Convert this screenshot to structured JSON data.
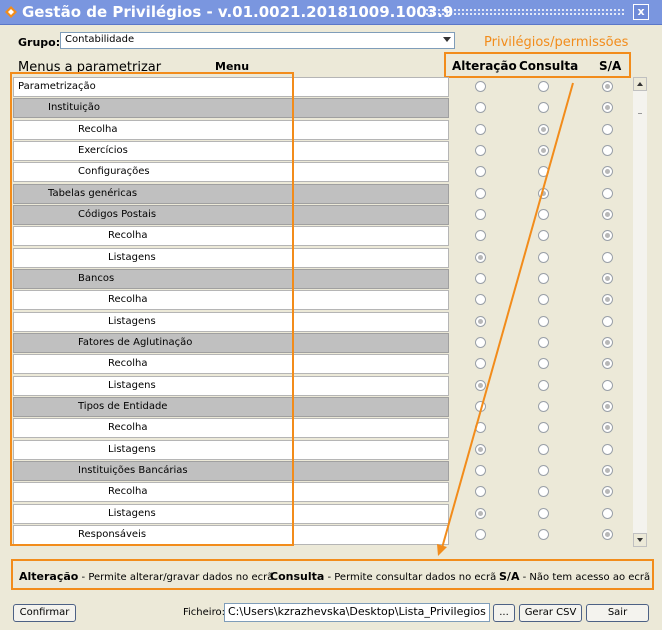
{
  "window": {
    "title": "Gestão de Privilégios - v.01.0021.20181009.1003.9",
    "close_label": "x"
  },
  "grupo": {
    "label": "Grupo:",
    "value": "Contabilidade"
  },
  "menus_title": "Menus a parametrizar",
  "menu_col_header": "Menu",
  "privileges_caption": "Privilégios/permissões",
  "columns": [
    "Alteração",
    "Consulta",
    "S/A"
  ],
  "rows": [
    {
      "label": "Parametrização",
      "indent": 0,
      "group": false,
      "sel": 2
    },
    {
      "label": "Instituição",
      "indent": 1,
      "group": true,
      "sel": 2
    },
    {
      "label": "Recolha",
      "indent": 2,
      "group": false,
      "sel": 1
    },
    {
      "label": "Exercícios",
      "indent": 2,
      "group": false,
      "sel": 1
    },
    {
      "label": "Configurações",
      "indent": 2,
      "group": false,
      "sel": 2
    },
    {
      "label": "Tabelas genéricas",
      "indent": 1,
      "group": true,
      "sel": 1
    },
    {
      "label": "Códigos Postais",
      "indent": 2,
      "group": true,
      "sel": 2
    },
    {
      "label": "Recolha",
      "indent": 3,
      "group": false,
      "sel": 2
    },
    {
      "label": "Listagens",
      "indent": 3,
      "group": false,
      "sel": 0
    },
    {
      "label": "Bancos",
      "indent": 2,
      "group": true,
      "sel": 2
    },
    {
      "label": "Recolha",
      "indent": 3,
      "group": false,
      "sel": 2
    },
    {
      "label": "Listagens",
      "indent": 3,
      "group": false,
      "sel": 0
    },
    {
      "label": "Fatores de Aglutinação",
      "indent": 2,
      "group": true,
      "sel": 2
    },
    {
      "label": "Recolha",
      "indent": 3,
      "group": false,
      "sel": 2
    },
    {
      "label": "Listagens",
      "indent": 3,
      "group": false,
      "sel": 0
    },
    {
      "label": "Tipos de Entidade",
      "indent": 2,
      "group": true,
      "sel": 2
    },
    {
      "label": "Recolha",
      "indent": 3,
      "group": false,
      "sel": 2
    },
    {
      "label": "Listagens",
      "indent": 3,
      "group": false,
      "sel": 0
    },
    {
      "label": "Instituições Bancárias",
      "indent": 2,
      "group": true,
      "sel": 2
    },
    {
      "label": "Recolha",
      "indent": 3,
      "group": false,
      "sel": 2
    },
    {
      "label": "Listagens",
      "indent": 3,
      "group": false,
      "sel": 0
    },
    {
      "label": "Responsáveis",
      "indent": 2,
      "group": false,
      "sel": 2
    }
  ],
  "legend": {
    "alteracao_term": "Alteração",
    "alteracao_desc": " - Permite alterar/gravar dados no ecrã",
    "consulta_term": "Consulta",
    "consulta_desc": " - Permite consultar dados no ecrã",
    "sa_term": "S/A",
    "sa_desc": " - Não tem acesso ao ecrã"
  },
  "footer": {
    "confirm_label": "Confirmar",
    "ficheiro_label": "Ficheiro:",
    "ficheiro_value": "C:\\Users\\kzrazhevska\\Desktop\\Lista_Privilegios",
    "browse_label": "...",
    "csv_label": "Gerar CSV",
    "exit_label": "Sair"
  },
  "colors": {
    "title_bar": "#7a96df",
    "highlight": "#f28c1b",
    "group_row": "#c0c0c0"
  }
}
